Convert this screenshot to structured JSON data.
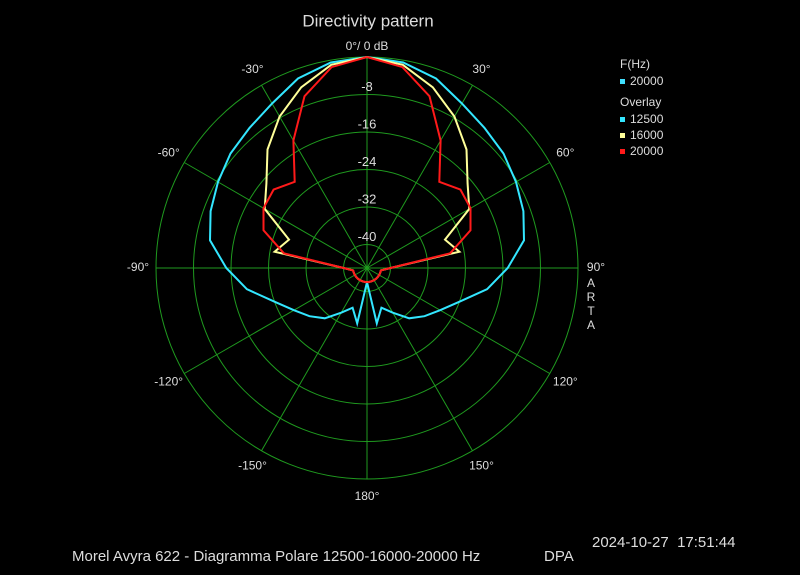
{
  "chart_data": {
    "type": "polar",
    "title": "Directivity pattern",
    "side_label": "ARTA",
    "footer": "Morel Avyra 622 - Diagramma Polare 12500-16000-20000 Hz",
    "mode": "DPA",
    "timestamp": "2024-10-27  17:51:44",
    "legend_title": "F(Hz)",
    "current": {
      "name": "20000",
      "color": "#40e0ff"
    },
    "overlay_title": "Overlay",
    "rlim": [
      -45,
      0
    ],
    "rticks": [
      {
        "value": 0,
        "label": "0°/ 0 dB"
      },
      -8,
      -16,
      -24,
      -32,
      -40
    ],
    "thetaticks": [
      {
        "value": 30,
        "label": "30°"
      },
      {
        "value": 60,
        "label": "60°"
      },
      {
        "value": 90,
        "label": "90°"
      },
      {
        "value": 120,
        "label": "120°"
      },
      {
        "value": 150,
        "label": "150°"
      },
      {
        "value": 180,
        "label": "180°"
      },
      {
        "value": -150,
        "label": "-150°"
      },
      {
        "value": -120,
        "label": "-120°"
      },
      {
        "value": -90,
        "label": "-90°"
      },
      {
        "value": -60,
        "label": "-60°"
      },
      {
        "value": -30,
        "label": "-30°"
      }
    ],
    "theta": [
      -180,
      -170,
      -160,
      -150,
      -140,
      -130,
      -120,
      -110,
      -100,
      -90,
      -80,
      -70,
      -60,
      -50,
      -40,
      -30,
      -20,
      -10,
      0,
      10,
      20,
      30,
      40,
      50,
      60,
      70,
      80,
      90,
      100,
      110,
      120,
      130,
      140,
      150,
      160,
      170,
      180
    ],
    "series": [
      {
        "name": "12500",
        "color": "#33e6ff",
        "values": [
          -42,
          -33,
          -36,
          -34,
          -31,
          -29,
          -27,
          -24,
          -19,
          -15,
          -11,
          -9.5,
          -8.3,
          -7,
          -6,
          -4.5,
          -2,
          -0.5,
          0,
          -0.5,
          -2,
          -4.5,
          -6,
          -7,
          -8.3,
          -9.5,
          -11,
          -15,
          -19,
          -24,
          -27,
          -29,
          -31,
          -34,
          -36,
          -33,
          -42
        ]
      },
      {
        "name": "16000",
        "color": "#ffff99",
        "values": [
          -42,
          -42,
          -42,
          -42,
          -42,
          -42,
          -42,
          -42,
          -42,
          -40,
          -25,
          -27.3,
          -19.8,
          -17,
          -12,
          -7.7,
          -4,
          -1,
          0,
          -1,
          -4,
          -7.7,
          -12,
          -17,
          -19.8,
          -27.3,
          -25,
          -40,
          -42,
          -42,
          -42,
          -42,
          -42,
          -42,
          -42,
          -42,
          -42
        ]
      },
      {
        "name": "20000",
        "color": "#ff1a1a",
        "values": [
          -42,
          -42,
          -42,
          -42,
          -42,
          -42,
          -42,
          -42,
          -42,
          -40,
          -27,
          -21.5,
          -19.5,
          -19,
          -21,
          -13.6,
          -6,
          -1.5,
          0,
          -1.5,
          -6,
          -13.6,
          -21,
          -19,
          -19.5,
          -21.5,
          -27,
          -40,
          -42,
          -42,
          -42,
          -42,
          -42,
          -42,
          -42,
          -42,
          -42
        ]
      }
    ],
    "grid_color": "#1f9a1f"
  }
}
